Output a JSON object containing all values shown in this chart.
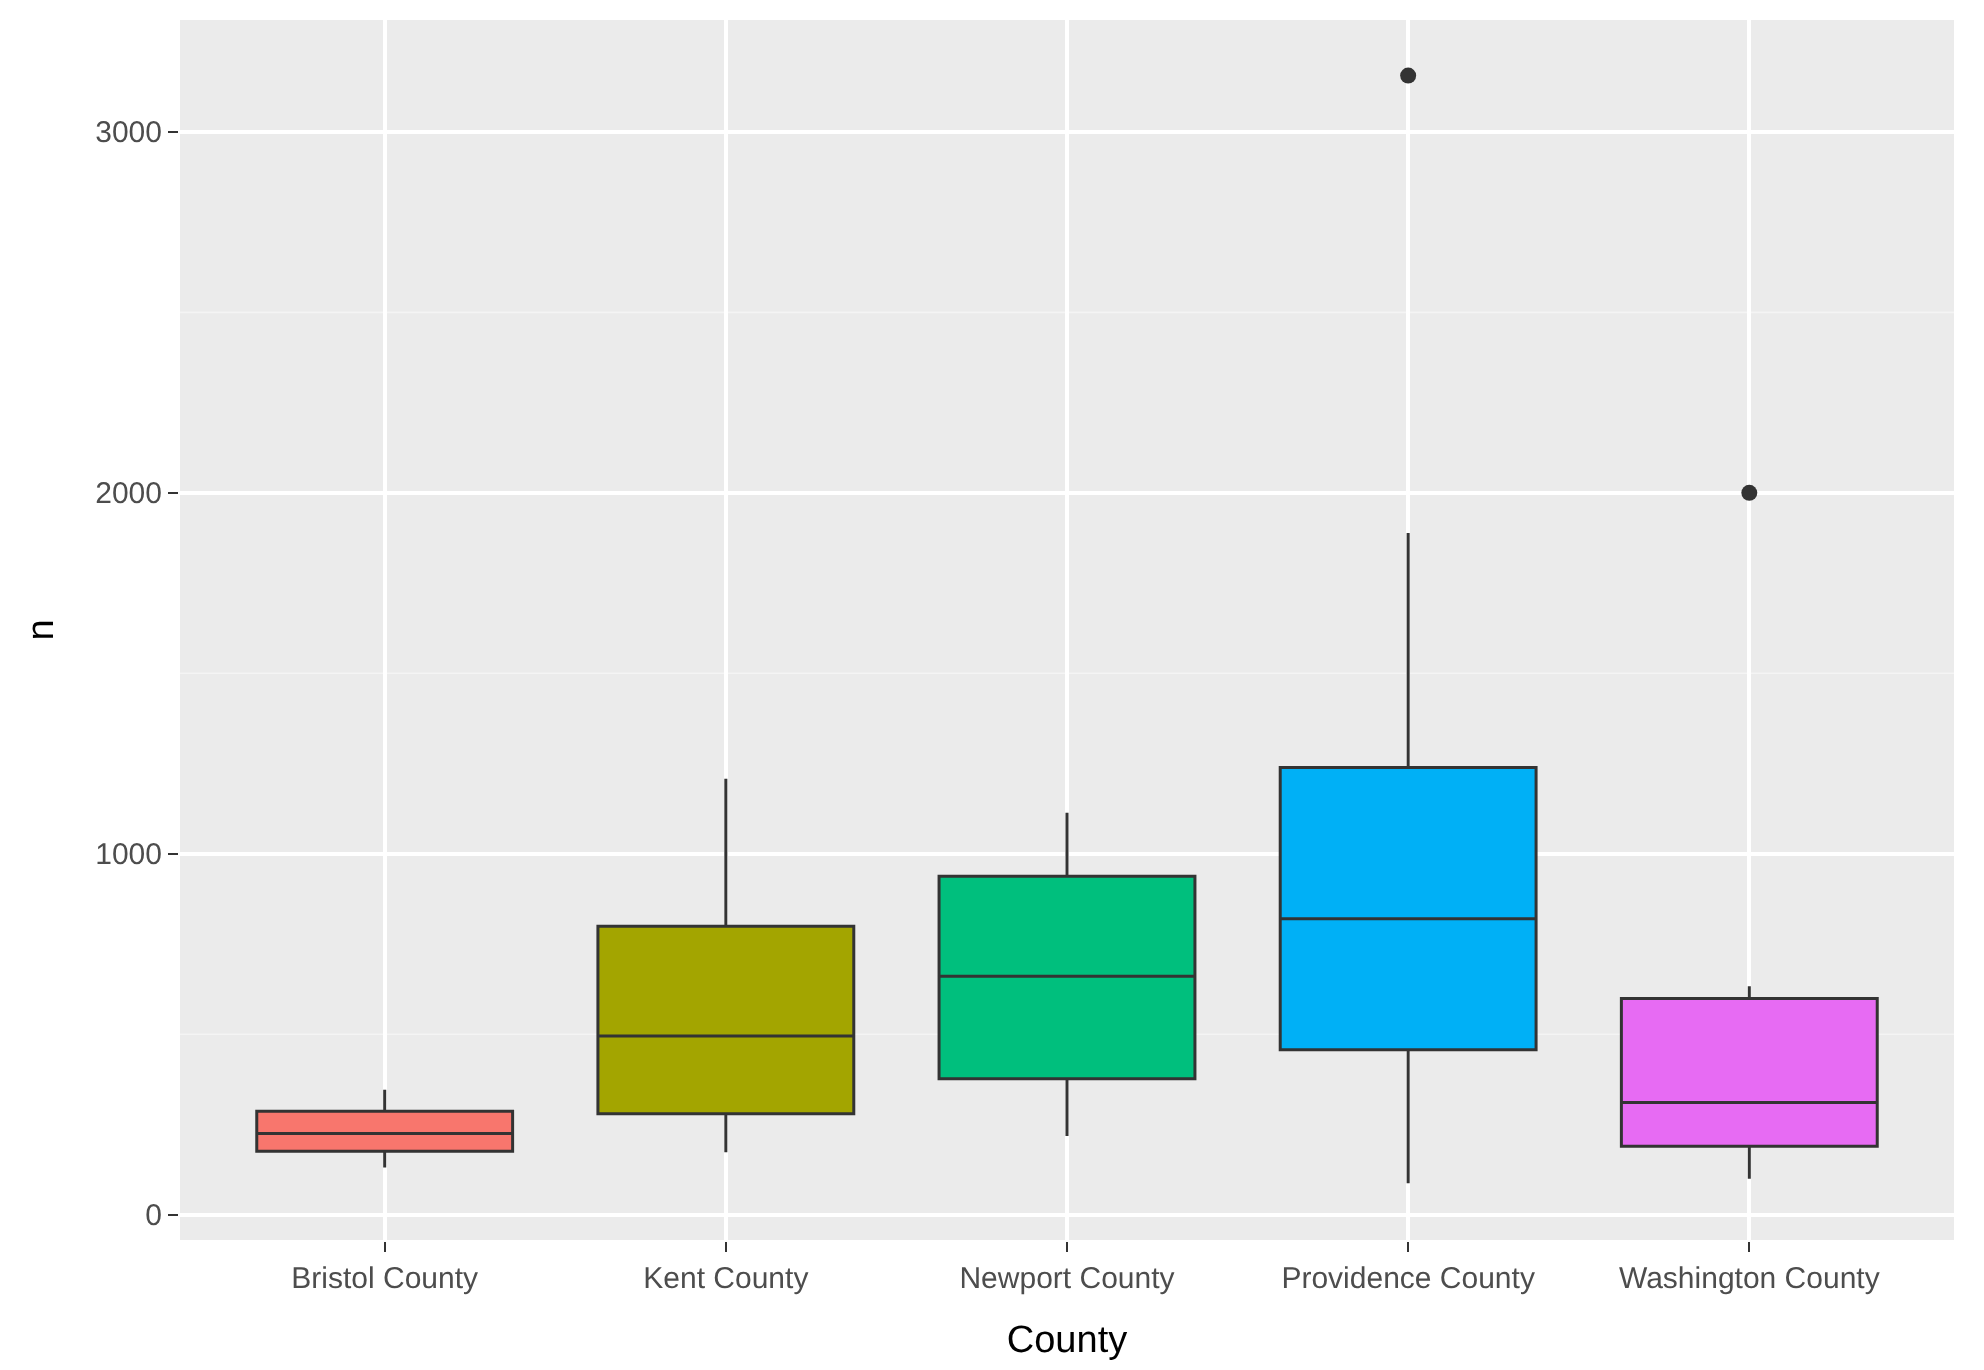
{
  "chart_data": {
    "type": "box",
    "xlabel": "County",
    "ylabel": "n",
    "categories": [
      "Bristol County",
      "Kent County",
      "Newport County",
      "Providence County",
      "Washington County"
    ],
    "colors": [
      "#f8766d",
      "#a3a500",
      "#00bf7d",
      "#00b0f6",
      "#e76bf3"
    ],
    "boxes": [
      {
        "low": 131,
        "q1": 176,
        "median": 225,
        "q3": 287,
        "high": 346
      },
      {
        "low": 173,
        "q1": 280,
        "median": 495,
        "q3": 799,
        "high": 1208
      },
      {
        "low": 218,
        "q1": 377,
        "median": 661,
        "q3": 938,
        "high": 1114
      },
      {
        "low": 87,
        "q1": 457,
        "median": 820,
        "q3": 1239,
        "high": 1889,
        "outliers": [
          3156
        ]
      },
      {
        "low": 100,
        "q1": 190,
        "median": 311,
        "q3": 599,
        "high": 633,
        "outliers": [
          2000
        ]
      }
    ],
    "ylim": [
      -70,
      3310
    ],
    "yticks": [
      0,
      1000,
      2000,
      3000
    ],
    "grid": true
  }
}
